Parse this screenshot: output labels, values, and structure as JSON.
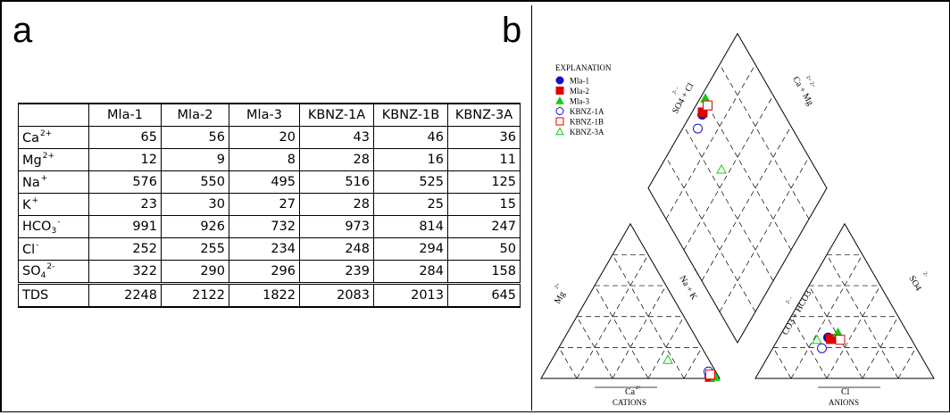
{
  "panel_labels": {
    "a": "a",
    "b": "b"
  },
  "table": {
    "columns": [
      "Mla-1",
      "Mla-2",
      "Mla-3",
      "KBNZ-1A",
      "KBNZ-1B",
      "KBNZ-3A"
    ],
    "rows": [
      {
        "base": "Ca",
        "sup": "2+",
        "sub": "",
        "values": [
          "65",
          "56",
          "20",
          "43",
          "46",
          "36"
        ]
      },
      {
        "base": "Mg",
        "sup": "2+",
        "sub": "",
        "values": [
          "12",
          "9",
          "8",
          "28",
          "16",
          "11"
        ]
      },
      {
        "base": "Na",
        "sup": "+",
        "sub": "",
        "values": [
          "576",
          "550",
          "495",
          "516",
          "525",
          "125"
        ]
      },
      {
        "base": "K",
        "sup": "+",
        "sub": "",
        "values": [
          "23",
          "30",
          "27",
          "28",
          "25",
          "15"
        ]
      },
      {
        "base": "HCO",
        "sup": "-",
        "sub": "3",
        "values": [
          "991",
          "926",
          "732",
          "973",
          "814",
          "247"
        ]
      },
      {
        "base": "Cl",
        "sup": "-",
        "sub": "",
        "values": [
          "252",
          "255",
          "234",
          "248",
          "294",
          "50"
        ]
      },
      {
        "base": "SO",
        "sup": "2-",
        "sub": "4",
        "values": [
          "322",
          "290",
          "296",
          "239",
          "284",
          "158"
        ]
      }
    ],
    "total_row": {
      "label": "TDS",
      "values": [
        "2248",
        "2122",
        "1822",
        "2083",
        "2013",
        "645"
      ]
    }
  },
  "chart_data": {
    "type": "scatter",
    "subtype": "piper-diagram",
    "legend": {
      "title": "EXPLANATION",
      "placement": "top-left",
      "entries": [
        {
          "name": "Mla-1",
          "marker": "filled-circle",
          "color": "#1010c8"
        },
        {
          "name": "Mla-2",
          "marker": "filled-square",
          "color": "#e00000"
        },
        {
          "name": "Mla-3",
          "marker": "filled-triangle",
          "color": "#18c818"
        },
        {
          "name": "KBNZ-1A",
          "marker": "open-circle",
          "color": "#1010c8"
        },
        {
          "name": "KBNZ-1B",
          "marker": "open-square",
          "color": "#e00000"
        },
        {
          "name": "KBNZ-3A",
          "marker": "open-triangle",
          "color": "#18c818"
        }
      ]
    },
    "axis_labels": {
      "cations": "CATIONS",
      "anions": "ANIONS",
      "cation_bottom": "Ca",
      "cation_bottom_sup": "2+",
      "anion_bottom": "Cl",
      "anion_bottom_sup": "-",
      "cation_left": "Mg",
      "cation_left_sup": "2+",
      "cation_right": "Na + K",
      "cation_right_sup": "+ +",
      "anion_left": "CO3 + HCO3",
      "anion_left_sup": "2-  -",
      "anion_right": "SO4",
      "anion_right_sup": "2-",
      "diamond_left": "SO4 + Cl",
      "diamond_left_sup": "2-  -",
      "diamond_right": "Ca + Mg",
      "diamond_right_sup": "2+  2+"
    },
    "grid": true,
    "grid_step_percent": 20,
    "samples": [
      {
        "name": "Mla-1",
        "cation_pct": {
          "Ca": 5.0,
          "Mg": 1.5,
          "NaK": 93.5
        },
        "anion_pct": {
          "Cl": 27.5,
          "SO4": 26.5,
          "HCO3": 46.0
        }
      },
      {
        "name": "Mla-2",
        "cation_pct": {
          "Ca": 5.0,
          "Mg": 1.0,
          "NaK": 94.0
        },
        "anion_pct": {
          "Cl": 29.5,
          "SO4": 25.5,
          "HCO3": 45.0
        }
      },
      {
        "name": "Mla-3",
        "cation_pct": {
          "Ca": 2.0,
          "Mg": 1.0,
          "NaK": 97.0
        },
        "anion_pct": {
          "Cl": 31.5,
          "SO4": 29.5,
          "HCO3": 39.0
        }
      },
      {
        "name": "KBNZ-1A",
        "cation_pct": {
          "Ca": 4.0,
          "Mg": 4.5,
          "NaK": 91.5
        },
        "anion_pct": {
          "Cl": 27.5,
          "SO4": 19.5,
          "HCO3": 53.0
        }
      },
      {
        "name": "KBNZ-1B",
        "cation_pct": {
          "Ca": 4.0,
          "Mg": 2.5,
          "NaK": 93.5
        },
        "anion_pct": {
          "Cl": 35.0,
          "SO4": 25.0,
          "HCO3": 40.0
        }
      },
      {
        "name": "KBNZ-3A",
        "cation_pct": {
          "Ca": 23.0,
          "Mg": 12.0,
          "NaK": 65.0
        },
        "anion_pct": {
          "Cl": 22.0,
          "SO4": 25.0,
          "HCO3": 53.0
        }
      }
    ]
  }
}
